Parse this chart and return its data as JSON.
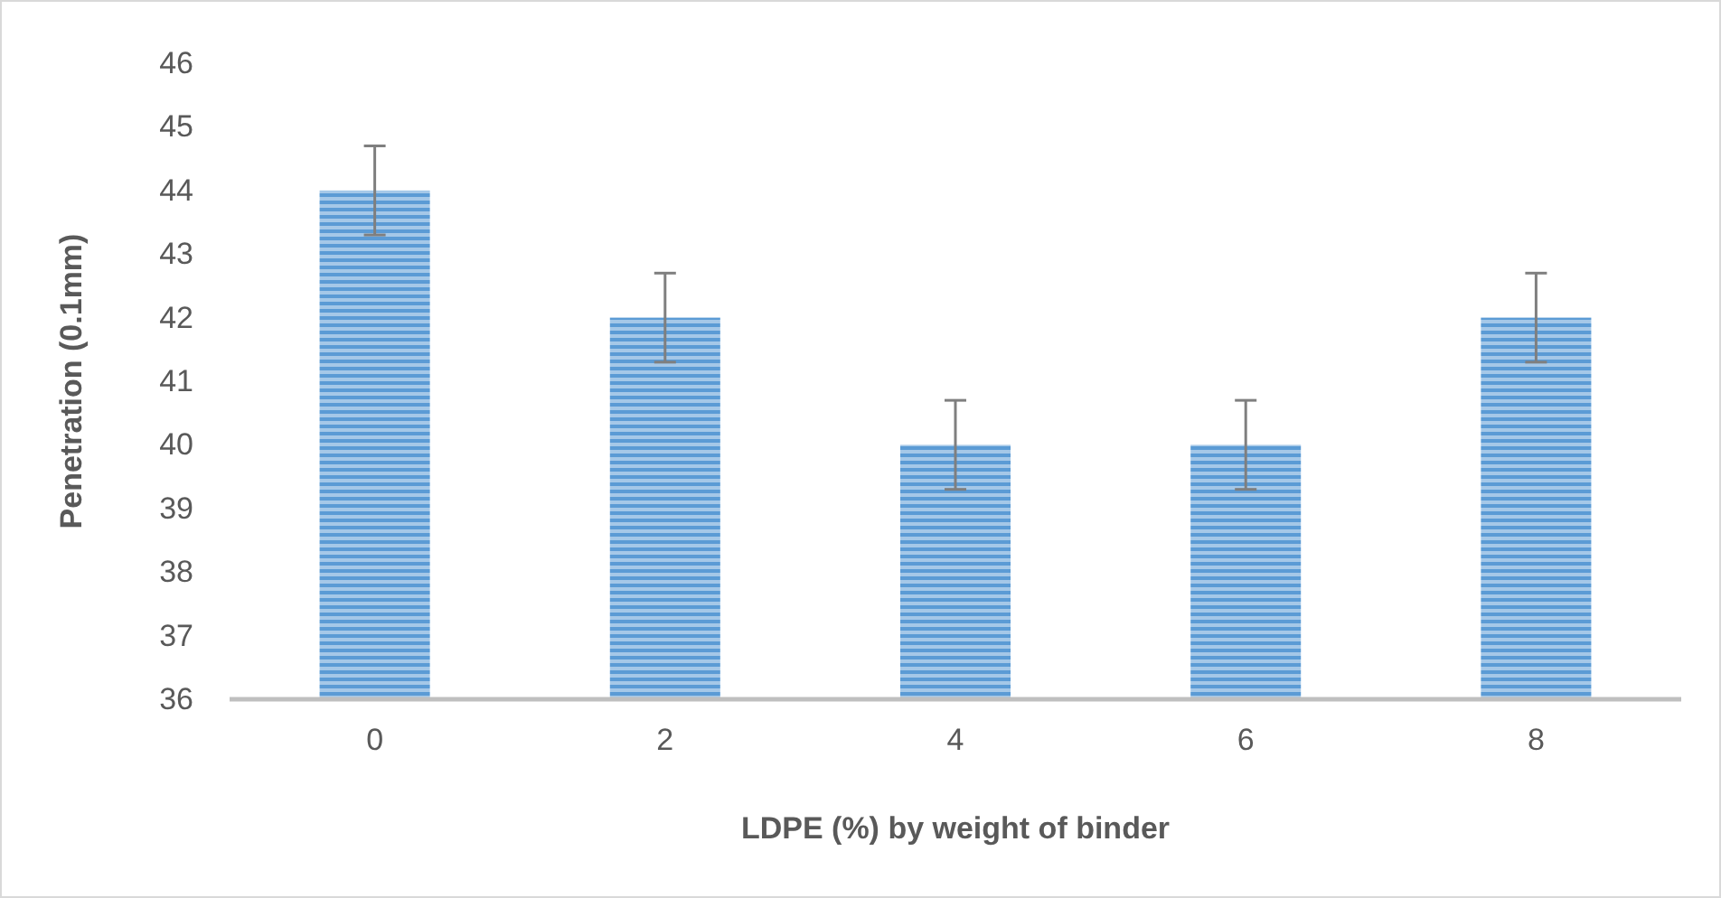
{
  "chart_data": {
    "type": "bar",
    "xlabel": "LDPE (%) by weight of binder",
    "ylabel": "Penetration (0.1mm)",
    "categories": [
      "0",
      "2",
      "4",
      "6",
      "8"
    ],
    "values": [
      44,
      42,
      40,
      40,
      42
    ],
    "errors": [
      0.7,
      0.7,
      0.7,
      0.7,
      0.7
    ],
    "color": "#5b9bd5",
    "ylim": [
      36,
      46
    ],
    "yticks": [
      36,
      37,
      38,
      39,
      40,
      41,
      42,
      43,
      44,
      45,
      46
    ],
    "grid": false
  }
}
